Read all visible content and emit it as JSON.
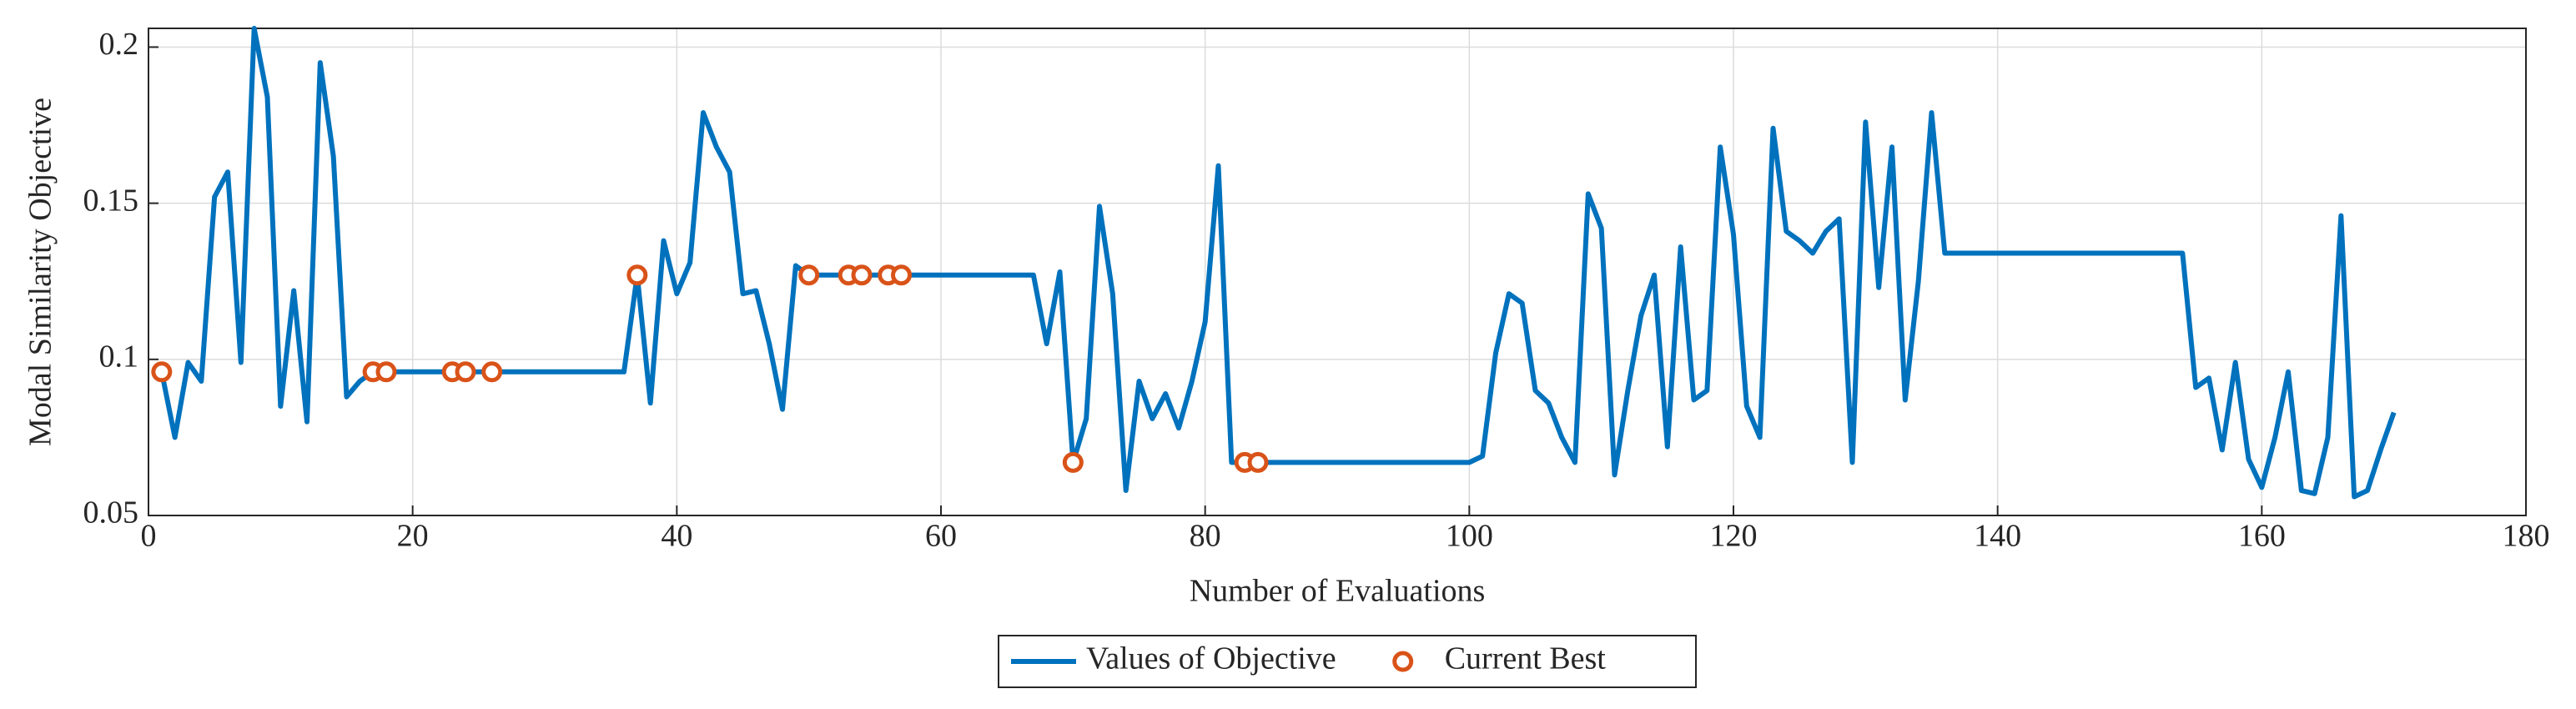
{
  "chart_data": {
    "type": "line",
    "xlabel": "Number of Evaluations",
    "ylabel": "Modal Similarity Objective",
    "xlim": [
      0,
      180
    ],
    "xticks": [
      0,
      20,
      40,
      60,
      80,
      100,
      120,
      140,
      160,
      180
    ],
    "ylim": [
      0.05,
      0.206
    ],
    "yticks": [
      0.05,
      0.1,
      0.15,
      0.2
    ],
    "grid": true,
    "legend": "bottom",
    "series": [
      {
        "name": "Values of Objective",
        "color": "#0072bd",
        "style": "line",
        "x": [
          1,
          2,
          3,
          4,
          5,
          6,
          7,
          8,
          9,
          10,
          11,
          12,
          13,
          14,
          15,
          16,
          17,
          18,
          19,
          20,
          21,
          22,
          23,
          24,
          25,
          26,
          27,
          28,
          29,
          30,
          31,
          32,
          33,
          34,
          35,
          36,
          37,
          38,
          39,
          40,
          41,
          42,
          43,
          44,
          45,
          46,
          47,
          48,
          49,
          50,
          51,
          52,
          53,
          54,
          55,
          56,
          57,
          58,
          59,
          60,
          61,
          62,
          63,
          64,
          65,
          66,
          67,
          68,
          69,
          70,
          71,
          72,
          73,
          74,
          75,
          76,
          77,
          78,
          79,
          80,
          81,
          82,
          83,
          84,
          85,
          86,
          87,
          88,
          89,
          90,
          91,
          92,
          93,
          94,
          95,
          96,
          97,
          98,
          99,
          100,
          101,
          102,
          103,
          104,
          105,
          106,
          107,
          108,
          109,
          110,
          111,
          112,
          113,
          114,
          115,
          116,
          117,
          118,
          119,
          120,
          121,
          122,
          123,
          124,
          125,
          126,
          127,
          128,
          129,
          130,
          131,
          132,
          133,
          134,
          135,
          136,
          137,
          138,
          139,
          140,
          141,
          142,
          143,
          144,
          145,
          146,
          147,
          148,
          149,
          150,
          151,
          152,
          153,
          154,
          155,
          156,
          157,
          158,
          159,
          160,
          161,
          162,
          163,
          164,
          165,
          166,
          167,
          168,
          169,
          170
        ],
        "values": [
          0.096,
          0.075,
          0.099,
          0.093,
          0.152,
          0.16,
          0.099,
          0.206,
          0.184,
          0.085,
          0.122,
          0.08,
          0.195,
          0.165,
          0.088,
          0.093,
          0.096,
          0.096,
          0.096,
          0.096,
          0.096,
          0.096,
          0.096,
          0.096,
          0.096,
          0.096,
          0.096,
          0.096,
          0.096,
          0.096,
          0.096,
          0.096,
          0.096,
          0.096,
          0.096,
          0.096,
          0.127,
          0.086,
          0.138,
          0.121,
          0.131,
          0.179,
          0.168,
          0.16,
          0.121,
          0.122,
          0.105,
          0.084,
          0.13,
          0.127,
          0.127,
          0.127,
          0.127,
          0.127,
          0.127,
          0.127,
          0.127,
          0.127,
          0.127,
          0.127,
          0.127,
          0.127,
          0.127,
          0.127,
          0.127,
          0.127,
          0.127,
          0.105,
          0.128,
          0.067,
          0.081,
          0.149,
          0.121,
          0.058,
          0.093,
          0.081,
          0.089,
          0.078,
          0.093,
          0.112,
          0.162,
          0.067,
          0.067,
          0.067,
          0.067,
          0.067,
          0.067,
          0.067,
          0.067,
          0.067,
          0.067,
          0.067,
          0.067,
          0.067,
          0.067,
          0.067,
          0.067,
          0.067,
          0.067,
          0.067,
          0.069,
          0.102,
          0.121,
          0.118,
          0.09,
          0.086,
          0.075,
          0.067,
          0.153,
          0.142,
          0.063,
          0.09,
          0.114,
          0.127,
          0.072,
          0.136,
          0.087,
          0.09,
          0.168,
          0.14,
          0.085,
          0.075,
          0.174,
          0.141,
          0.138,
          0.134,
          0.141,
          0.145,
          0.067,
          0.176,
          0.123,
          0.168,
          0.087,
          0.125,
          0.179,
          0.134,
          0.134,
          0.134,
          0.134,
          0.134,
          0.134,
          0.134,
          0.134,
          0.134,
          0.134,
          0.134,
          0.134,
          0.134,
          0.134,
          0.134,
          0.134,
          0.134,
          0.134,
          0.134,
          0.091,
          0.094,
          0.071,
          0.099,
          0.068,
          0.059,
          0.075,
          0.096,
          0.058,
          0.057,
          0.075,
          0.146,
          0.056,
          0.058,
          0.071,
          0.083
        ]
      },
      {
        "name": "Current Best",
        "color": "#d95319",
        "style": "marker",
        "x": [
          1,
          17,
          18,
          23,
          24,
          26,
          37,
          50,
          53,
          54,
          56,
          57,
          70,
          83,
          84
        ],
        "values": [
          0.096,
          0.096,
          0.096,
          0.096,
          0.096,
          0.096,
          0.127,
          0.127,
          0.127,
          0.127,
          0.127,
          0.127,
          0.067,
          0.067,
          0.067
        ]
      }
    ]
  }
}
